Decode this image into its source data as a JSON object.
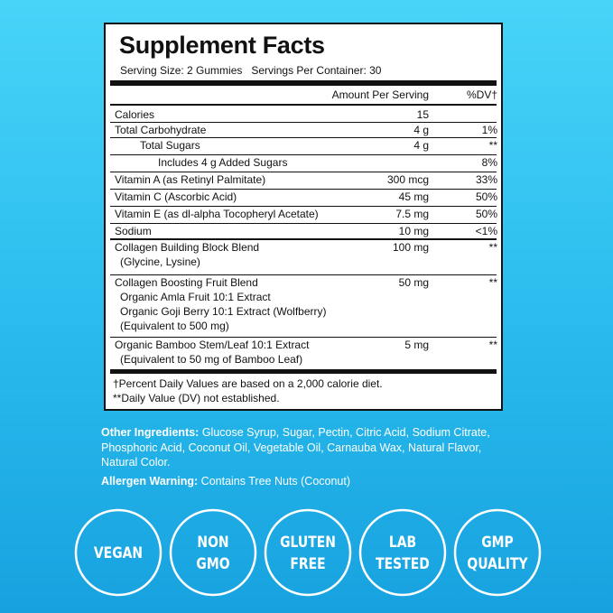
{
  "panel": {
    "title": "Supplement Facts",
    "serving": "Serving Size: 2 Gummies   Servings Per Container: 30",
    "columns": {
      "amount": "Amount Per Serving",
      "dv": "%DV†"
    },
    "rows": [
      {
        "name": [
          "Calories"
        ],
        "amount": "15"
      },
      {
        "name": [
          "Total Carbohydrate"
        ],
        "amount": "4 g",
        "dv": "1%"
      },
      {
        "name": [
          "Total Sugars"
        ],
        "amount": "4 g",
        "dv": "**"
      },
      {
        "name": [
          "Includes 4 g Added Sugars"
        ],
        "dv": "8%"
      },
      {
        "name": [
          "Vitamin A (as Retinyl Palmitate)"
        ],
        "amount": "300 mcg",
        "dv": "33%"
      },
      {
        "name": [
          "Vitamin C (Ascorbic Acid)"
        ],
        "amount": "45 mg",
        "dv": "50%"
      },
      {
        "name": [
          "Vitamin E (as dl-alpha Tocopheryl Acetate)"
        ],
        "amount": "7.5 mg",
        "dv": "50%"
      },
      {
        "name": [
          "Sodium"
        ],
        "amount": "10 mg",
        "dv": "<1%"
      },
      {
        "name": [
          "Collagen Building Block Blend",
          "(Glycine, Lysine)"
        ],
        "amount": "100 mg",
        "dv": "**"
      },
      {
        "name": [
          "Collagen Boosting Fruit Blend",
          "Organic Amla Fruit 10:1 Extract",
          "Organic Goji Berry 10:1 Extract (Wolfberry)",
          "(Equivalent to 500 mg)"
        ],
        "amount": "50 mg",
        "dv": "**"
      },
      {
        "name": [
          "Organic Bamboo Stem/Leaf 10:1 Extract",
          "(Equivalent to 50 mg of Bamboo Leaf)"
        ],
        "amount": "5 mg",
        "dv": "**"
      }
    ],
    "footnotes": [
      "†Percent Daily Values are based on a 2,000 calorie diet.",
      "**Daily Value (DV) not established."
    ]
  },
  "other_ingredients": {
    "label": "Other Ingredients:",
    "text": "Glucose Syrup, Sugar, Pectin, Citric Acid, Sodium Citrate, Phosphoric Acid, Coconut Oil, Vegetable Oil, Carnauba Wax, Natural Flavor, Natural Color."
  },
  "allergen": {
    "label": "Allergen Warning:",
    "text": "Contains Tree Nuts (Coconut)"
  },
  "badges": [
    [
      "VEGAN"
    ],
    [
      "NON",
      "GMO"
    ],
    [
      "GLUTEN",
      "FREE"
    ],
    [
      "LAB",
      "TESTED"
    ],
    [
      "GMP",
      "QUALITY"
    ]
  ]
}
